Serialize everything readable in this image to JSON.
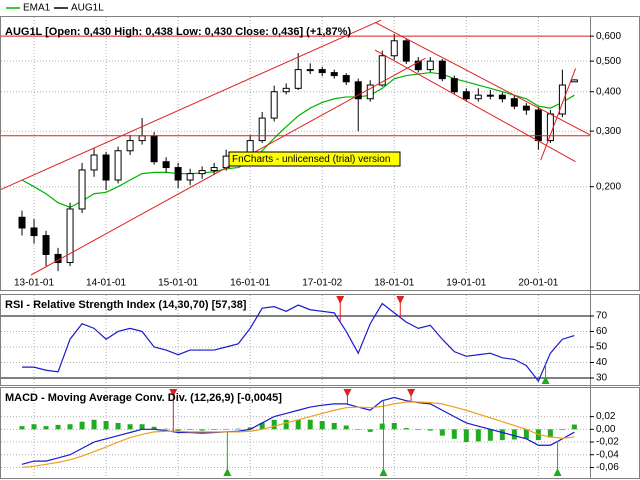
{
  "chart_data": [
    {
      "type": "candlestick",
      "title": "AUG1L [Open: 0,430  High: 0,438  Low: 0,430  Close: 0,436] (+1,87%)",
      "annotation": "FnCharts - unlicensed (trial) version",
      "log_scale": true,
      "grid": true,
      "xlim": [
        -1.75,
        47.3
      ],
      "xticks": [
        {
          "value": 1,
          "label": "13-01-01"
        },
        {
          "value": 7,
          "label": "14-01-01"
        },
        {
          "value": 13,
          "label": "15-01-01"
        },
        {
          "value": 19,
          "label": "16-01-01"
        },
        {
          "value": 25,
          "label": "17-01-02"
        },
        {
          "value": 31,
          "label": "18-01-01"
        },
        {
          "value": 37,
          "label": "19-01-01"
        },
        {
          "value": 43,
          "label": "20-01-01"
        }
      ],
      "ylim": [
        0.105,
        0.69
      ],
      "yticks": [
        {
          "value": 0.2,
          "label": "0,200"
        },
        {
          "value": 0.3,
          "label": "0,300"
        },
        {
          "value": 0.4,
          "label": "0,400"
        },
        {
          "value": 0.5,
          "label": "0,500"
        },
        {
          "value": 0.6,
          "label": "0,600"
        }
      ],
      "series": [
        {
          "name": "EMA1",
          "color": "#00b400",
          "values": [
            0.21,
            0.2,
            0.19,
            0.178,
            0.172,
            0.18,
            0.19,
            0.192,
            0.2,
            0.21,
            0.22,
            0.222,
            0.222,
            0.22,
            0.22,
            0.221,
            0.223,
            0.228,
            0.23,
            0.24,
            0.26,
            0.285,
            0.31,
            0.335,
            0.355,
            0.37,
            0.38,
            0.385,
            0.385,
            0.39,
            0.41,
            0.44,
            0.45,
            0.455,
            0.46,
            0.455,
            0.44,
            0.43,
            0.42,
            0.41,
            0.4,
            0.39,
            0.38,
            0.36,
            0.355,
            0.37,
            0.39
          ]
        },
        {
          "name": "AUG1L",
          "color": "#000000",
          "open": [
            0.16,
            0.148,
            0.14,
            0.122,
            0.115,
            0.17,
            0.226,
            0.252,
            0.21,
            0.26,
            0.28,
            0.29,
            0.24,
            0.23,
            0.21,
            0.22,
            0.225,
            0.23,
            0.25,
            0.24,
            0.28,
            0.33,
            0.4,
            0.41,
            0.47,
            0.47,
            0.46,
            0.45,
            0.43,
            0.38,
            0.42,
            0.52,
            0.58,
            0.5,
            0.47,
            0.5,
            0.44,
            0.4,
            0.38,
            0.39,
            0.39,
            0.38,
            0.36,
            0.35,
            0.28,
            0.34,
            0.43
          ],
          "high": [
            0.168,
            0.158,
            0.145,
            0.128,
            0.178,
            0.238,
            0.265,
            0.258,
            0.268,
            0.292,
            0.33,
            0.298,
            0.248,
            0.238,
            0.228,
            0.232,
            0.238,
            0.262,
            0.256,
            0.292,
            0.345,
            0.418,
            0.425,
            0.53,
            0.492,
            0.48,
            0.47,
            0.458,
            0.44,
            0.435,
            0.54,
            0.61,
            0.59,
            0.515,
            0.515,
            0.508,
            0.45,
            0.41,
            0.41,
            0.405,
            0.398,
            0.39,
            0.368,
            0.358,
            0.35,
            0.47,
            0.438
          ],
          "low": [
            0.14,
            0.132,
            0.112,
            0.108,
            0.112,
            0.165,
            0.215,
            0.195,
            0.205,
            0.252,
            0.272,
            0.235,
            0.222,
            0.198,
            0.202,
            0.212,
            0.218,
            0.225,
            0.232,
            0.235,
            0.275,
            0.322,
            0.392,
            0.405,
            0.455,
            0.448,
            0.44,
            0.42,
            0.3,
            0.372,
            0.415,
            0.505,
            0.49,
            0.46,
            0.462,
            0.432,
            0.392,
            0.372,
            0.372,
            0.378,
            0.37,
            0.352,
            0.338,
            0.262,
            0.275,
            0.332,
            0.43
          ],
          "close": [
            0.148,
            0.14,
            0.122,
            0.115,
            0.17,
            0.226,
            0.252,
            0.21,
            0.26,
            0.28,
            0.29,
            0.24,
            0.23,
            0.21,
            0.22,
            0.225,
            0.23,
            0.25,
            0.24,
            0.28,
            0.33,
            0.4,
            0.41,
            0.47,
            0.47,
            0.46,
            0.45,
            0.43,
            0.38,
            0.42,
            0.52,
            0.58,
            0.5,
            0.47,
            0.5,
            0.44,
            0.4,
            0.38,
            0.39,
            0.39,
            0.38,
            0.36,
            0.35,
            0.28,
            0.34,
            0.42,
            0.436
          ]
        }
      ],
      "line_color": "#e02020",
      "lines": [
        {
          "x": [
            -1.75,
            29.9
          ],
          "y": [
            0.196,
            0.674
          ]
        },
        {
          "x": [
            0.75,
            33.6
          ],
          "y": [
            0.105,
            0.511
          ]
        },
        {
          "x": [
            29.4,
            47.3
          ],
          "y": [
            0.664,
            0.292
          ]
        },
        {
          "x": [
            29.4,
            46.1
          ],
          "y": [
            0.542,
            0.24
          ]
        },
        {
          "x": [
            -1.75,
            47.3
          ],
          "y": [
            0.6,
            0.6
          ]
        },
        {
          "x": [
            -1.75,
            47.3
          ],
          "y": [
            0.29,
            0.29
          ]
        },
        {
          "x": [
            43.2,
            46.1
          ],
          "y": [
            0.243,
            0.474
          ]
        }
      ]
    },
    {
      "type": "line",
      "title": "RSI - Relative Strength Index (14,30,70) [57,38]",
      "ylim": [
        25.5,
        83.5
      ],
      "yticks": [
        30,
        40,
        50,
        60,
        70
      ],
      "grid": true,
      "levels": [
        30,
        70
      ],
      "sell_signals": [
        26.5,
        31.5
      ],
      "buy_signals": [
        43.6
      ],
      "series": [
        {
          "color": "#1a1acc",
          "values": [
            37,
            37,
            35,
            34,
            55,
            65,
            62,
            55,
            60,
            62,
            60,
            50,
            48,
            45,
            48,
            48,
            48,
            50,
            52,
            62,
            75,
            76,
            73,
            77,
            74,
            73,
            72,
            60,
            46,
            65,
            78,
            72,
            66,
            62,
            64,
            55,
            47,
            44,
            45,
            46,
            43,
            42,
            38,
            28,
            46,
            55,
            57.38
          ]
        }
      ]
    },
    {
      "type": "macd",
      "title": "MACD - Moving Average Conv. Div. (12,26,9) [-0,0045]",
      "ylim": [
        -0.075,
        0.065
      ],
      "yticks": [
        {
          "value": -0.06,
          "label": "-0,06"
        },
        {
          "value": -0.04,
          "label": "-0,04"
        },
        {
          "value": -0.02,
          "label": "-0,02"
        },
        {
          "value": 0,
          "label": "0,00"
        },
        {
          "value": 0.02,
          "label": "0,02"
        }
      ],
      "grid": true,
      "sell_signals": [
        12.6,
        27.1,
        32.4
      ],
      "buy_signals": [
        17.1,
        30.1,
        44.6
      ],
      "histogram": {
        "color": "#22aa22",
        "values": [
          0.005,
          0.008,
          0.005,
          0.007,
          0.008,
          0.012,
          0.015,
          0.013,
          0.01,
          0.008,
          0.008,
          0.004,
          0.001,
          -0.002,
          -0.001,
          -0.002,
          -0.001,
          0,
          0.001,
          0.003,
          0.01,
          0.015,
          0.015,
          0.015,
          0.015,
          0.013,
          0.01,
          0.006,
          0,
          -0.004,
          0.009,
          0.01,
          0.002,
          -0.001,
          -0.002,
          -0.01,
          -0.015,
          -0.02,
          -0.019,
          -0.018,
          -0.017,
          -0.016,
          -0.015,
          -0.017,
          -0.013,
          -0.001,
          0.0075
        ]
      },
      "series": [
        {
          "color": "#1a1acc",
          "values": [
            -0.055,
            -0.05,
            -0.05,
            -0.045,
            -0.04,
            -0.03,
            -0.02,
            -0.015,
            -0.01,
            -0.005,
            0,
            0,
            -0.002,
            -0.005,
            -0.005,
            -0.006,
            -0.005,
            -0.004,
            -0.003,
            0,
            0.01,
            0.02,
            0.025,
            0.03,
            0.035,
            0.038,
            0.04,
            0.04,
            0.035,
            0.03,
            0.045,
            0.05,
            0.045,
            0.042,
            0.04,
            0.03,
            0.02,
            0.01,
            0.005,
            0,
            -0.005,
            -0.01,
            -0.015,
            -0.025,
            -0.025,
            -0.015,
            -0.0045
          ]
        },
        {
          "color": "#f0a020",
          "values": [
            -0.06,
            -0.058,
            -0.055,
            -0.052,
            -0.048,
            -0.042,
            -0.035,
            -0.028,
            -0.02,
            -0.013,
            -0.008,
            -0.004,
            -0.003,
            -0.003,
            -0.004,
            -0.004,
            -0.004,
            -0.004,
            -0.004,
            -0.003,
            0,
            0.005,
            0.01,
            0.015,
            0.02,
            0.025,
            0.03,
            0.034,
            0.035,
            0.034,
            0.036,
            0.04,
            0.043,
            0.043,
            0.042,
            0.04,
            0.035,
            0.03,
            0.024,
            0.018,
            0.012,
            0.006,
            0,
            -0.008,
            -0.012,
            -0.014,
            -0.012
          ]
        }
      ]
    }
  ]
}
